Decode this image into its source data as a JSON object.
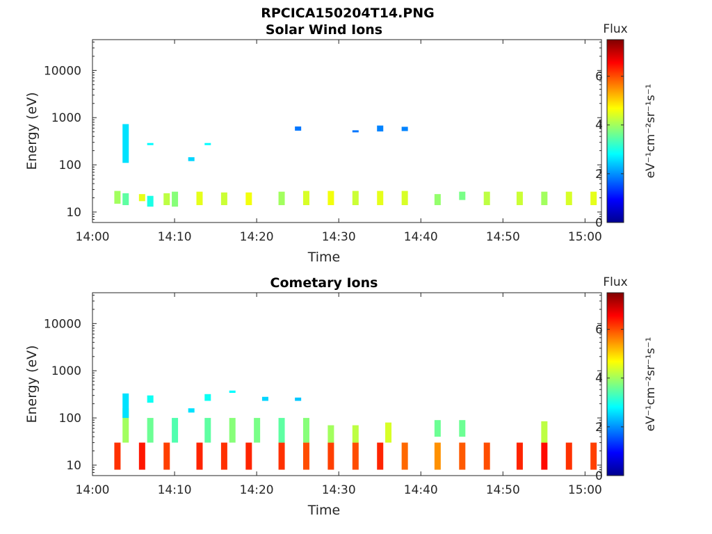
{
  "figure_title": "RPCICA150204T14.PNG",
  "colorscale": [
    "#00008f",
    "#0000ff",
    "#0080ff",
    "#00ffff",
    "#80ff80",
    "#ffff00",
    "#ff8000",
    "#ff0000",
    "#800000"
  ],
  "chart_data": [
    {
      "type": "heatmap",
      "title": "Solar Wind Ions",
      "xlabel": "Time",
      "ylabel": "Energy (eV)",
      "y_scale": "log",
      "ylim": [
        6,
        45000
      ],
      "xlim": [
        "14:00",
        "15:02"
      ],
      "x_tick_labels": [
        "14:00",
        "14:10",
        "14:20",
        "14:30",
        "14:40",
        "14:50",
        "15:00"
      ],
      "y_tick_labels": [
        "10",
        "100",
        "1000",
        "10000"
      ],
      "colorbar": {
        "label_top": "Flux",
        "unit": "eV⁻¹cm⁻²sr⁻¹s⁻¹",
        "range": [
          0,
          7.5
        ],
        "ticks": [
          "0",
          "2",
          "4",
          "6"
        ]
      },
      "cells": [
        {
          "t": "14:03",
          "e": [
            15,
            28
          ],
          "flux": 4.0
        },
        {
          "t": "14:04",
          "e": [
            14,
            25
          ],
          "flux": 3.5
        },
        {
          "t": "14:06",
          "e": [
            17,
            24
          ],
          "flux": 4.5
        },
        {
          "t": "14:07",
          "e": [
            13,
            22
          ],
          "flux": 3.0
        },
        {
          "t": "14:09",
          "e": [
            14,
            25
          ],
          "flux": 4.2
        },
        {
          "t": "14:10",
          "e": [
            13,
            27
          ],
          "flux": 3.8
        },
        {
          "t": "14:13",
          "e": [
            14,
            27
          ],
          "flux": 4.5
        },
        {
          "t": "14:16",
          "e": [
            14,
            26
          ],
          "flux": 4.3
        },
        {
          "t": "14:19",
          "e": [
            14,
            26
          ],
          "flux": 4.6
        },
        {
          "t": "14:23",
          "e": [
            14,
            27
          ],
          "flux": 4.0
        },
        {
          "t": "14:26",
          "e": [
            14,
            28
          ],
          "flux": 4.4
        },
        {
          "t": "14:29",
          "e": [
            14,
            28
          ],
          "flux": 4.6
        },
        {
          "t": "14:32",
          "e": [
            14,
            28
          ],
          "flux": 4.3
        },
        {
          "t": "14:35",
          "e": [
            14,
            28
          ],
          "flux": 4.5
        },
        {
          "t": "14:38",
          "e": [
            14,
            28
          ],
          "flux": 4.4
        },
        {
          "t": "14:42",
          "e": [
            14,
            24
          ],
          "flux": 3.9
        },
        {
          "t": "14:45",
          "e": [
            18,
            27
          ],
          "flux": 3.7
        },
        {
          "t": "14:48",
          "e": [
            14,
            27
          ],
          "flux": 4.2
        },
        {
          "t": "14:52",
          "e": [
            14,
            27
          ],
          "flux": 4.3
        },
        {
          "t": "14:55",
          "e": [
            14,
            27
          ],
          "flux": 4.0
        },
        {
          "t": "14:58",
          "e": [
            14,
            27
          ],
          "flux": 4.4
        },
        {
          "t": "15:01",
          "e": [
            14,
            27
          ],
          "flux": 4.5
        },
        {
          "t": "14:04",
          "e": [
            110,
            730
          ],
          "flux": 2.6
        },
        {
          "t": "14:07",
          "e": [
            270,
            290
          ],
          "flux": 2.8
        },
        {
          "t": "14:12",
          "e": [
            120,
            145
          ],
          "flux": 2.5
        },
        {
          "t": "14:14",
          "e": [
            270,
            290
          ],
          "flux": 2.8
        },
        {
          "t": "14:25",
          "e": [
            530,
            650
          ],
          "flux": 1.8
        },
        {
          "t": "14:32",
          "e": [
            510,
            540
          ],
          "flux": 1.8
        },
        {
          "t": "14:35",
          "e": [
            510,
            680
          ],
          "flux": 1.9
        },
        {
          "t": "14:38",
          "e": [
            520,
            640
          ],
          "flux": 1.9
        }
      ]
    },
    {
      "type": "heatmap",
      "title": "Cometary Ions",
      "xlabel": "Time",
      "ylabel": "Energy (eV)",
      "y_scale": "log",
      "ylim": [
        6,
        45000
      ],
      "xlim": [
        "14:00",
        "15:02"
      ],
      "x_tick_labels": [
        "14:00",
        "14:10",
        "14:20",
        "14:30",
        "14:40",
        "14:50",
        "15:00"
      ],
      "y_tick_labels": [
        "10",
        "100",
        "1000",
        "10000"
      ],
      "colorbar": {
        "label_top": "Flux",
        "unit": "eV⁻¹cm⁻²sr⁻¹s⁻¹",
        "range": [
          0,
          7.5
        ],
        "ticks": [
          "0",
          "2",
          "4",
          "6"
        ]
      },
      "cells": [
        {
          "t": "14:03",
          "e": [
            8,
            30
          ],
          "flux": 6.2
        },
        {
          "t": "14:04",
          "e": [
            30,
            160
          ],
          "flux": 4.0
        },
        {
          "t": "14:06",
          "e": [
            8,
            30
          ],
          "flux": 6.4
        },
        {
          "t": "14:07",
          "e": [
            30,
            100
          ],
          "flux": 3.6
        },
        {
          "t": "14:09",
          "e": [
            8,
            30
          ],
          "flux": 6.1
        },
        {
          "t": "14:10",
          "e": [
            30,
            100
          ],
          "flux": 3.4
        },
        {
          "t": "14:13",
          "e": [
            8,
            30
          ],
          "flux": 6.3
        },
        {
          "t": "14:14",
          "e": [
            30,
            100
          ],
          "flux": 3.5
        },
        {
          "t": "14:16",
          "e": [
            8,
            30
          ],
          "flux": 6.2
        },
        {
          "t": "14:17",
          "e": [
            30,
            100
          ],
          "flux": 3.8
        },
        {
          "t": "14:19",
          "e": [
            8,
            30
          ],
          "flux": 6.3
        },
        {
          "t": "14:20",
          "e": [
            30,
            100
          ],
          "flux": 3.7
        },
        {
          "t": "14:23",
          "e": [
            8,
            30
          ],
          "flux": 6.2
        },
        {
          "t": "14:23",
          "e": [
            30,
            100
          ],
          "flux": 3.5
        },
        {
          "t": "14:26",
          "e": [
            8,
            30
          ],
          "flux": 6.0
        },
        {
          "t": "14:26",
          "e": [
            30,
            100
          ],
          "flux": 3.8
        },
        {
          "t": "14:29",
          "e": [
            8,
            30
          ],
          "flux": 6.1
        },
        {
          "t": "14:29",
          "e": [
            30,
            70
          ],
          "flux": 4.0
        },
        {
          "t": "14:32",
          "e": [
            8,
            30
          ],
          "flux": 6.0
        },
        {
          "t": "14:32",
          "e": [
            30,
            70
          ],
          "flux": 4.2
        },
        {
          "t": "14:35",
          "e": [
            8,
            30
          ],
          "flux": 6.3
        },
        {
          "t": "14:36",
          "e": [
            30,
            80
          ],
          "flux": 4.4
        },
        {
          "t": "14:38",
          "e": [
            8,
            30
          ],
          "flux": 5.8
        },
        {
          "t": "14:42",
          "e": [
            8,
            30
          ],
          "flux": 5.5
        },
        {
          "t": "14:42",
          "e": [
            40,
            90
          ],
          "flux": 3.6
        },
        {
          "t": "14:45",
          "e": [
            8,
            30
          ],
          "flux": 5.9
        },
        {
          "t": "14:45",
          "e": [
            40,
            90
          ],
          "flux": 3.6
        },
        {
          "t": "14:48",
          "e": [
            8,
            30
          ],
          "flux": 6.0
        },
        {
          "t": "14:52",
          "e": [
            8,
            30
          ],
          "flux": 6.3
        },
        {
          "t": "14:55",
          "e": [
            8,
            30
          ],
          "flux": 6.5
        },
        {
          "t": "14:55",
          "e": [
            30,
            85
          ],
          "flux": 4.2
        },
        {
          "t": "14:58",
          "e": [
            8,
            30
          ],
          "flux": 6.2
        },
        {
          "t": "15:01",
          "e": [
            8,
            30
          ],
          "flux": 6.1
        },
        {
          "t": "14:04",
          "e": [
            100,
            330
          ],
          "flux": 2.6
        },
        {
          "t": "14:07",
          "e": [
            210,
            300
          ],
          "flux": 2.9
        },
        {
          "t": "14:12",
          "e": [
            130,
            160
          ],
          "flux": 2.6
        },
        {
          "t": "14:14",
          "e": [
            230,
            320
          ],
          "flux": 2.9
        },
        {
          "t": "14:17",
          "e": [
            340,
            380
          ],
          "flux": 2.8
        },
        {
          "t": "14:21",
          "e": [
            230,
            280
          ],
          "flux": 2.5
        },
        {
          "t": "14:25",
          "e": [
            230,
            270
          ],
          "flux": 2.4
        }
      ]
    }
  ]
}
